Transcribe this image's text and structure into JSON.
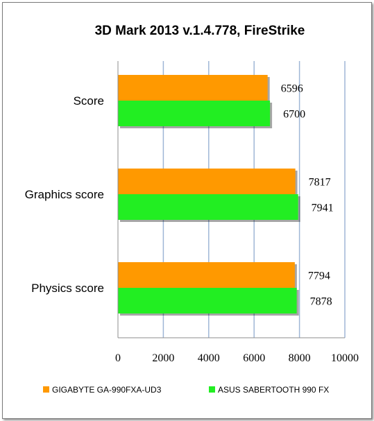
{
  "chart_data": {
    "type": "bar",
    "orientation": "horizontal",
    "title": "3D Mark 2013 v.1.4.778, FireStrike",
    "categories": [
      "Score",
      "Graphics score",
      "Physics score"
    ],
    "series": [
      {
        "name": "GIGABYTE GA-990FXA-UD3",
        "color": "#ff9900",
        "values": [
          6596,
          7817,
          7794
        ]
      },
      {
        "name": "ASUS SABERTOOTH 990 FX",
        "color": "#22ee22",
        "values": [
          6700,
          7941,
          7878
        ]
      }
    ],
    "xlim": [
      0,
      10000
    ],
    "xticks": [
      "0",
      "2000",
      "4000",
      "6000",
      "8000",
      "10000"
    ],
    "grid": true,
    "legend_position": "bottom"
  }
}
